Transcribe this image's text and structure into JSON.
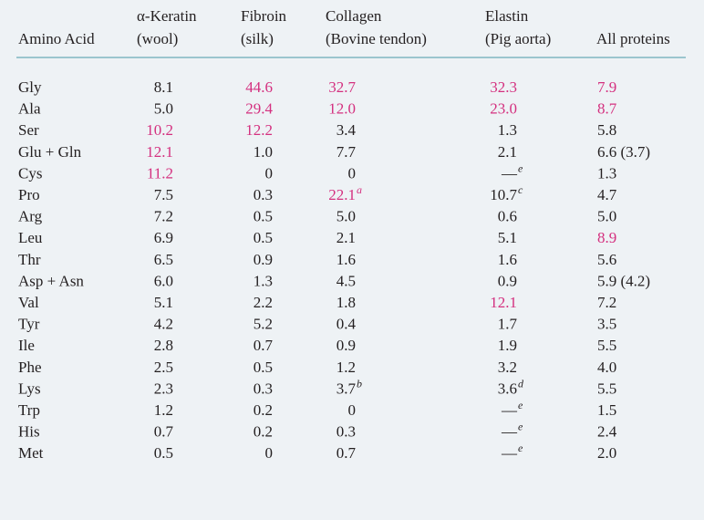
{
  "table": {
    "columns": [
      {
        "lines": [
          "Amino Acid"
        ]
      },
      {
        "lines": [
          "α-Keratin",
          "(wool)"
        ]
      },
      {
        "lines": [
          "Fibroin",
          "(silk)"
        ]
      },
      {
        "lines": [
          "Collagen",
          "(Bovine tendon)"
        ]
      },
      {
        "lines": [
          "Elastin",
          "(Pig aorta)"
        ]
      },
      {
        "lines": [
          "All proteins"
        ]
      }
    ],
    "rows": [
      [
        {
          "text": "Gly"
        },
        {
          "text": "8.1"
        },
        {
          "text": "44.6",
          "color": "#d4307f"
        },
        {
          "text": "32.7",
          "color": "#d4307f"
        },
        {
          "text": "32.3",
          "color": "#d4307f"
        },
        {
          "text": "7.9",
          "color": "#d4307f"
        }
      ],
      [
        {
          "text": "Ala"
        },
        {
          "text": "5.0"
        },
        {
          "text": "29.4",
          "color": "#d4307f"
        },
        {
          "text": "12.0",
          "color": "#d4307f"
        },
        {
          "text": "23.0",
          "color": "#d4307f"
        },
        {
          "text": "8.7",
          "color": "#d4307f"
        }
      ],
      [
        {
          "text": "Ser"
        },
        {
          "text": "10.2",
          "color": "#d4307f"
        },
        {
          "text": "12.2",
          "color": "#d4307f"
        },
        {
          "text": "3.4"
        },
        {
          "text": "1.3"
        },
        {
          "text": "5.8"
        }
      ],
      [
        {
          "text": "Glu + Gln"
        },
        {
          "text": "12.1",
          "color": "#d4307f"
        },
        {
          "text": "1.0"
        },
        {
          "text": "7.7"
        },
        {
          "text": "2.1"
        },
        {
          "text": "6.6 (3.7)"
        }
      ],
      [
        {
          "text": "Cys"
        },
        {
          "text": "11.2",
          "color": "#d4307f"
        },
        {
          "text": "0"
        },
        {
          "text": "0"
        },
        {
          "text": "—",
          "note": "e"
        },
        {
          "text": "1.3"
        }
      ],
      [
        {
          "text": "Pro"
        },
        {
          "text": "7.5"
        },
        {
          "text": "0.3"
        },
        {
          "text": "22.1",
          "note": "a",
          "color": "#d4307f"
        },
        {
          "text": "10.7",
          "note": "c"
        },
        {
          "text": "4.7"
        }
      ],
      [
        {
          "text": "Arg"
        },
        {
          "text": "7.2"
        },
        {
          "text": "0.5"
        },
        {
          "text": "5.0"
        },
        {
          "text": "0.6"
        },
        {
          "text": "5.0"
        }
      ],
      [
        {
          "text": "Leu"
        },
        {
          "text": "6.9"
        },
        {
          "text": "0.5"
        },
        {
          "text": "2.1"
        },
        {
          "text": "5.1"
        },
        {
          "text": "8.9",
          "color": "#d4307f"
        }
      ],
      [
        {
          "text": "Thr"
        },
        {
          "text": "6.5"
        },
        {
          "text": "0.9"
        },
        {
          "text": "1.6"
        },
        {
          "text": "1.6"
        },
        {
          "text": "5.6"
        }
      ],
      [
        {
          "text": "Asp + Asn"
        },
        {
          "text": "6.0"
        },
        {
          "text": "1.3"
        },
        {
          "text": "4.5"
        },
        {
          "text": "0.9"
        },
        {
          "text": "5.9 (4.2)"
        }
      ],
      [
        {
          "text": "Val"
        },
        {
          "text": "5.1"
        },
        {
          "text": "2.2"
        },
        {
          "text": "1.8"
        },
        {
          "text": "12.1",
          "color": "#d4307f"
        },
        {
          "text": "7.2"
        }
      ],
      [
        {
          "text": "Tyr"
        },
        {
          "text": "4.2"
        },
        {
          "text": "5.2"
        },
        {
          "text": "0.4"
        },
        {
          "text": "1.7"
        },
        {
          "text": "3.5"
        }
      ],
      [
        {
          "text": "Ile"
        },
        {
          "text": "2.8"
        },
        {
          "text": "0.7"
        },
        {
          "text": "0.9"
        },
        {
          "text": "1.9"
        },
        {
          "text": "5.5"
        }
      ],
      [
        {
          "text": "Phe"
        },
        {
          "text": "2.5"
        },
        {
          "text": "0.5"
        },
        {
          "text": "1.2"
        },
        {
          "text": "3.2"
        },
        {
          "text": "4.0"
        }
      ],
      [
        {
          "text": "Lys"
        },
        {
          "text": "2.3"
        },
        {
          "text": "0.3"
        },
        {
          "text": "3.7",
          "note": "b"
        },
        {
          "text": "3.6",
          "note": "d"
        },
        {
          "text": "5.5"
        }
      ],
      [
        {
          "text": "Trp"
        },
        {
          "text": "1.2"
        },
        {
          "text": "0.2"
        },
        {
          "text": "0"
        },
        {
          "text": "—",
          "note": "e"
        },
        {
          "text": "1.5"
        }
      ],
      [
        {
          "text": "His"
        },
        {
          "text": "0.7"
        },
        {
          "text": "0.2"
        },
        {
          "text": "0.3"
        },
        {
          "text": "—",
          "note": "e"
        },
        {
          "text": "2.4"
        }
      ],
      [
        {
          "text": "Met"
        },
        {
          "text": "0.5"
        },
        {
          "text": "0"
        },
        {
          "text": "0.7"
        },
        {
          "text": "—",
          "note": "e"
        },
        {
          "text": "2.0"
        }
      ]
    ]
  }
}
